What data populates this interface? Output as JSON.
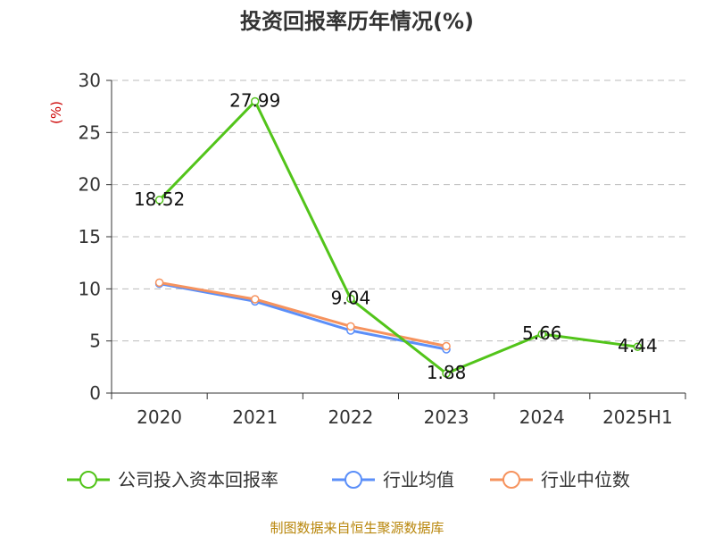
{
  "chart_data": {
    "type": "line",
    "title": "投资回报率历年情况(%)",
    "ylabel": "(%)",
    "categories": [
      "2020",
      "2021",
      "2022",
      "2023",
      "2024",
      "2025H1"
    ],
    "ylim": [
      0,
      30
    ],
    "yticks": [
      0,
      5,
      10,
      15,
      20,
      25,
      30
    ],
    "grid": true,
    "legend_position": "bottom",
    "series": [
      {
        "name": "公司投入资本回报率",
        "color": "#52c41a",
        "values": [
          18.52,
          27.99,
          9.04,
          1.88,
          5.66,
          4.44
        ],
        "labels": [
          "18.52",
          "27.99",
          "9.04",
          "1.88",
          "5.66",
          "4.44"
        ]
      },
      {
        "name": "行业均值",
        "color": "#5b8ff9",
        "values": [
          10.5,
          8.8,
          6.0,
          4.2,
          null,
          null
        ]
      },
      {
        "name": "行业中位数",
        "color": "#f6935e",
        "values": [
          10.6,
          9.0,
          6.4,
          4.5,
          null,
          null
        ]
      }
    ]
  },
  "footer": {
    "source": "制图数据来自恒生聚源数据库"
  }
}
